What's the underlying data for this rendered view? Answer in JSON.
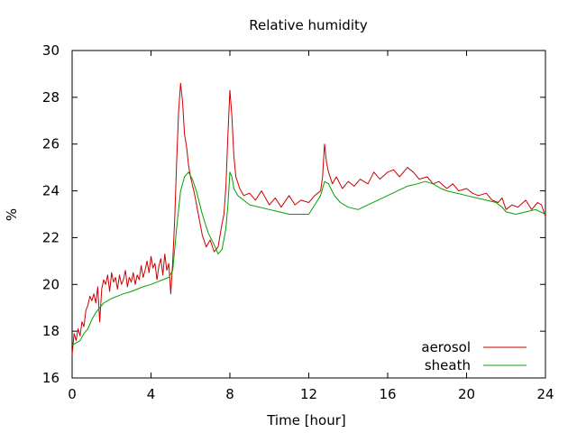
{
  "chart_data": {
    "type": "line",
    "title": "Relative humidity",
    "xlabel": "Time [hour]",
    "ylabel": "%",
    "xlim": [
      0,
      24
    ],
    "ylim": [
      16,
      30
    ],
    "xticks": [
      0,
      4,
      8,
      12,
      16,
      20,
      24
    ],
    "yticks": [
      16,
      18,
      20,
      22,
      24,
      26,
      28,
      30
    ],
    "xtick_labels": [
      "0",
      "4",
      "8",
      "12",
      "16",
      "20",
      "24"
    ],
    "ytick_labels": [
      "16",
      "18",
      "20",
      "22",
      "24",
      "26",
      "28",
      "30"
    ],
    "grid": false,
    "legend_position": "bottom-right",
    "series": [
      {
        "name": "aerosol",
        "color": "#cc0000",
        "x": [
          0.0,
          0.1,
          0.2,
          0.3,
          0.4,
          0.5,
          0.6,
          0.7,
          0.8,
          0.9,
          1.0,
          1.1,
          1.2,
          1.3,
          1.4,
          1.5,
          1.6,
          1.7,
          1.8,
          1.9,
          2.0,
          2.1,
          2.2,
          2.3,
          2.4,
          2.5,
          2.6,
          2.7,
          2.8,
          2.9,
          3.0,
          3.1,
          3.2,
          3.3,
          3.4,
          3.5,
          3.6,
          3.7,
          3.8,
          3.9,
          4.0,
          4.1,
          4.2,
          4.3,
          4.4,
          4.5,
          4.6,
          4.7,
          4.8,
          4.9,
          5.0,
          5.1,
          5.2,
          5.3,
          5.4,
          5.5,
          5.6,
          5.7,
          5.8,
          5.9,
          6.0,
          6.2,
          6.4,
          6.6,
          6.8,
          7.0,
          7.2,
          7.4,
          7.6,
          7.7,
          7.8,
          7.9,
          8.0,
          8.1,
          8.2,
          8.3,
          8.5,
          8.7,
          9.0,
          9.3,
          9.6,
          10.0,
          10.3,
          10.6,
          11.0,
          11.3,
          11.6,
          12.0,
          12.3,
          12.6,
          12.7,
          12.8,
          12.9,
          13.0,
          13.2,
          13.4,
          13.7,
          14.0,
          14.3,
          14.6,
          15.0,
          15.3,
          15.6,
          16.0,
          16.3,
          16.6,
          17.0,
          17.3,
          17.6,
          18.0,
          18.3,
          18.6,
          19.0,
          19.3,
          19.6,
          20.0,
          20.3,
          20.6,
          21.0,
          21.3,
          21.6,
          21.8,
          22.0,
          22.3,
          22.6,
          23.0,
          23.3,
          23.6,
          23.8,
          24.0
        ],
        "y": [
          17.0,
          17.9,
          17.6,
          18.1,
          17.8,
          18.4,
          18.2,
          18.9,
          19.1,
          19.5,
          19.3,
          19.6,
          19.2,
          19.9,
          18.4,
          19.8,
          20.2,
          20.0,
          20.4,
          19.7,
          20.5,
          20.1,
          20.3,
          19.8,
          20.4,
          20.0,
          20.2,
          20.6,
          19.9,
          20.3,
          20.1,
          20.5,
          20.0,
          20.4,
          20.2,
          20.8,
          20.3,
          20.6,
          21.0,
          20.5,
          21.2,
          20.7,
          20.9,
          20.2,
          20.8,
          21.1,
          20.4,
          21.3,
          20.6,
          20.9,
          19.6,
          21.0,
          22.8,
          25.2,
          27.4,
          28.6,
          27.8,
          26.4,
          25.9,
          25.1,
          24.6,
          23.9,
          23.0,
          22.1,
          21.6,
          21.9,
          21.4,
          21.6,
          22.6,
          23.0,
          24.2,
          26.4,
          28.3,
          27.2,
          25.5,
          24.6,
          24.1,
          23.8,
          23.9,
          23.6,
          24.0,
          23.4,
          23.7,
          23.3,
          23.8,
          23.4,
          23.6,
          23.5,
          23.8,
          24.0,
          24.6,
          26.0,
          25.2,
          24.8,
          24.3,
          24.6,
          24.1,
          24.4,
          24.2,
          24.5,
          24.3,
          24.8,
          24.5,
          24.8,
          24.9,
          24.6,
          25.0,
          24.8,
          24.5,
          24.6,
          24.3,
          24.4,
          24.1,
          24.3,
          24.0,
          24.1,
          23.9,
          23.8,
          23.9,
          23.6,
          23.5,
          23.7,
          23.2,
          23.4,
          23.3,
          23.6,
          23.2,
          23.5,
          23.4,
          22.9
        ]
      },
      {
        "name": "sheath",
        "color": "#00a000",
        "x": [
          0.0,
          0.2,
          0.4,
          0.6,
          0.8,
          1.0,
          1.2,
          1.4,
          1.6,
          1.8,
          2.0,
          2.3,
          2.6,
          3.0,
          3.3,
          3.6,
          4.0,
          4.3,
          4.6,
          4.9,
          5.1,
          5.3,
          5.5,
          5.7,
          5.9,
          6.1,
          6.3,
          6.6,
          6.9,
          7.2,
          7.4,
          7.6,
          7.8,
          7.9,
          8.0,
          8.1,
          8.2,
          8.4,
          8.7,
          9.0,
          9.5,
          10.0,
          10.5,
          11.0,
          11.5,
          12.0,
          12.3,
          12.6,
          12.8,
          13.0,
          13.3,
          13.6,
          14.0,
          14.5,
          15.0,
          15.5,
          16.0,
          16.5,
          17.0,
          17.5,
          17.9,
          18.3,
          18.7,
          19.0,
          19.5,
          20.0,
          20.5,
          21.0,
          21.5,
          21.8,
          22.0,
          22.5,
          23.0,
          23.5,
          24.0
        ],
        "y": [
          17.4,
          17.5,
          17.6,
          17.9,
          18.1,
          18.5,
          18.8,
          19.0,
          19.2,
          19.3,
          19.4,
          19.5,
          19.6,
          19.7,
          19.8,
          19.9,
          20.0,
          20.1,
          20.2,
          20.3,
          20.6,
          22.4,
          24.0,
          24.6,
          24.8,
          24.5,
          24.0,
          23.0,
          22.2,
          21.7,
          21.3,
          21.5,
          22.4,
          23.4,
          24.8,
          24.6,
          24.1,
          23.8,
          23.6,
          23.4,
          23.3,
          23.2,
          23.1,
          23.0,
          23.0,
          23.0,
          23.4,
          23.8,
          24.4,
          24.3,
          23.8,
          23.5,
          23.3,
          23.2,
          23.4,
          23.6,
          23.8,
          24.0,
          24.2,
          24.3,
          24.4,
          24.3,
          24.1,
          24.0,
          23.9,
          23.8,
          23.7,
          23.6,
          23.5,
          23.3,
          23.1,
          23.0,
          23.1,
          23.2,
          23.0
        ]
      }
    ]
  }
}
